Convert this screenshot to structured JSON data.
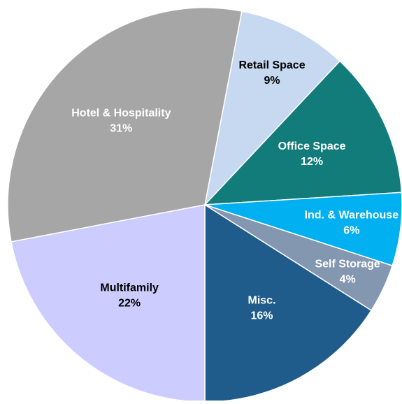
{
  "chart_data": {
    "type": "pie",
    "start_angle": 10.8,
    "categories": [
      "Retail Space",
      "Office Space",
      "Ind. & Warehouse",
      "Self Storage",
      "Misc.",
      "Multifamily",
      "Hotel & Hospitality"
    ],
    "values": [
      9,
      12,
      6,
      4,
      16,
      22,
      31
    ],
    "value_labels": [
      "9%",
      "12%",
      "6%",
      "4%",
      "16%",
      "22%",
      "31%"
    ],
    "colors": [
      "#c6d9f0",
      "#127c7a",
      "#00b0f0",
      "#8497b0",
      "#1f5c8c",
      "#ccccff",
      "#a6a6a6"
    ],
    "label_colors": [
      "#000000",
      "#ffffff",
      "#ffffff",
      "#ffffff",
      "#ffffff",
      "#000000",
      "#ffffff"
    ]
  }
}
